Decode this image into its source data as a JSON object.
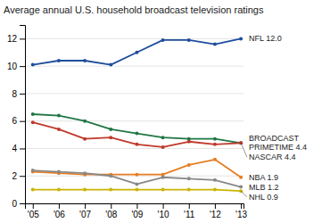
{
  "chart_data": {
    "type": "line",
    "title": "Average annual U.S. household broadcast television ratings",
    "x": [
      2005,
      2006,
      2007,
      2008,
      2009,
      2010,
      2011,
      2012,
      2013
    ],
    "series": [
      {
        "name": "NFL 12.0",
        "color": "#1f4e9c",
        "values": [
          10.1,
          10.4,
          10.4,
          10.1,
          11.0,
          11.9,
          11.9,
          11.6,
          12.0
        ]
      },
      {
        "name": "BROADCAST\nPRIMETIME 4.4",
        "color": "#217645",
        "values": [
          6.5,
          6.4,
          6.0,
          5.4,
          5.1,
          4.8,
          4.7,
          4.7,
          4.4
        ]
      },
      {
        "name": "NASCAR 4.4",
        "color": "#c0392b",
        "values": [
          5.9,
          5.4,
          4.7,
          4.8,
          4.3,
          4.1,
          4.5,
          4.3,
          4.4
        ]
      },
      {
        "name": "NBA 1.9",
        "color": "#e67e22",
        "values": [
          2.3,
          2.2,
          2.1,
          2.1,
          2.1,
          2.1,
          2.8,
          3.2,
          1.9
        ]
      },
      {
        "name": "MLB 1.2",
        "color": "#888888",
        "values": [
          2.4,
          2.3,
          2.2,
          2.0,
          1.4,
          1.9,
          1.8,
          1.7,
          1.2
        ]
      },
      {
        "name": "NHL 0.9",
        "color": "#c8b400",
        "values": [
          1.0,
          1.0,
          1.0,
          1.0,
          1.0,
          1.0,
          1.0,
          1.0,
          0.9
        ]
      }
    ],
    "xlim": [
      2004.7,
      2013.1
    ],
    "xticks": [
      {
        "value": 2005,
        "label": "'05"
      },
      {
        "value": 2006,
        "label": "'06"
      },
      {
        "value": 2007,
        "label": "'07"
      },
      {
        "value": 2008,
        "label": "'08"
      },
      {
        "value": 2009,
        "label": "'09"
      },
      {
        "value": 2010,
        "label": "'10"
      },
      {
        "value": 2011,
        "label": "'11"
      },
      {
        "value": 2012,
        "label": "'12"
      },
      {
        "value": 2013,
        "label": "'13"
      }
    ],
    "ylim": [
      0,
      13
    ],
    "yticks": [
      0,
      2,
      4,
      6,
      8,
      10,
      12
    ],
    "grid": true,
    "marker": "circle"
  }
}
